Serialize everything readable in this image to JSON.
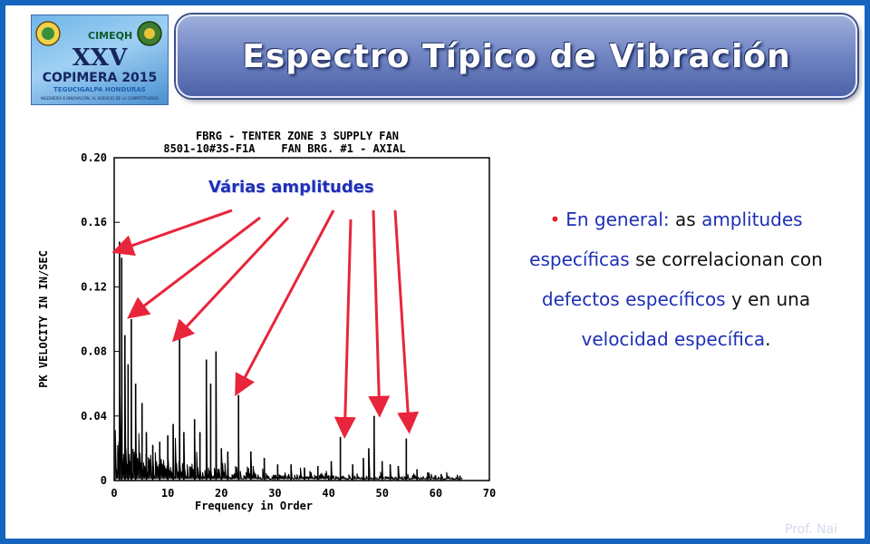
{
  "header": {
    "title": "Espectro Típico de Vibración",
    "logo": {
      "top_marks": [
        "CIMEQH"
      ],
      "edition": "XXV",
      "event": "COPIMERA 2015",
      "location": "TEGUCIGALPA HONDURAS",
      "tagline": "INGENIERÍA E INNOVACIÓN, AL SERVICIO DE LA COMPETITIVIDAD"
    }
  },
  "annotation": {
    "label": "Várias amplitudes",
    "arrow_color": "#e8253b"
  },
  "body": {
    "bullet_glyph": "•",
    "parts": [
      {
        "text": "En general:",
        "kind": "hl"
      },
      {
        "text": " as ",
        "kind": "plain"
      },
      {
        "text": "amplitudes específicas",
        "kind": "hl"
      },
      {
        "text": " se correlacionan con ",
        "kind": "plain"
      },
      {
        "text": "defectos específicos",
        "kind": "hl"
      },
      {
        "text": " y en una ",
        "kind": "plain"
      },
      {
        "text": "velocidad específica",
        "kind": "hl"
      },
      {
        "text": ".",
        "kind": "plain"
      }
    ]
  },
  "footer": {
    "watermark": "Prof. Nai"
  },
  "colors": {
    "frame": "#1565c0",
    "highlight": "#1f2fb5",
    "bullet": "#e01e2e",
    "arrow": "#e8253b"
  },
  "chart_data": {
    "type": "line",
    "title": "FBRG - TENTER ZONE 3 SUPPLY FAN",
    "subtitle": "8501-10#3S-F1A    FAN BRG. #1 - AXIAL",
    "xlabel": "Frequency in Order",
    "ylabel": "PK VELOCITY IN IN/SEC",
    "xlim": [
      0,
      70
    ],
    "ylim": [
      0,
      0.2
    ],
    "xticks": [
      0,
      10,
      20,
      30,
      40,
      50,
      60,
      70
    ],
    "yticks": [
      0,
      0.04,
      0.08,
      0.12,
      0.16,
      0.2
    ],
    "ytick_labels": [
      "0",
      "0.04",
      "0.08",
      "0.12",
      "0.16",
      "0.20"
    ],
    "grid": false,
    "peaks": [
      {
        "x": 1.0,
        "y": 0.148
      },
      {
        "x": 1.4,
        "y": 0.138
      },
      {
        "x": 2.0,
        "y": 0.09
      },
      {
        "x": 2.6,
        "y": 0.072
      },
      {
        "x": 3.2,
        "y": 0.1
      },
      {
        "x": 4.0,
        "y": 0.06
      },
      {
        "x": 5.2,
        "y": 0.048
      },
      {
        "x": 6.0,
        "y": 0.03
      },
      {
        "x": 7.2,
        "y": 0.022
      },
      {
        "x": 8.5,
        "y": 0.024
      },
      {
        "x": 10.0,
        "y": 0.028
      },
      {
        "x": 11.0,
        "y": 0.035
      },
      {
        "x": 12.2,
        "y": 0.093
      },
      {
        "x": 13.0,
        "y": 0.03
      },
      {
        "x": 15.0,
        "y": 0.038
      },
      {
        "x": 16.0,
        "y": 0.03
      },
      {
        "x": 17.2,
        "y": 0.075
      },
      {
        "x": 18.0,
        "y": 0.06
      },
      {
        "x": 19.0,
        "y": 0.08
      },
      {
        "x": 20.0,
        "y": 0.02
      },
      {
        "x": 21.2,
        "y": 0.018
      },
      {
        "x": 23.2,
        "y": 0.053
      },
      {
        "x": 25.5,
        "y": 0.018
      },
      {
        "x": 28.0,
        "y": 0.014
      },
      {
        "x": 30.5,
        "y": 0.01
      },
      {
        "x": 33.0,
        "y": 0.01
      },
      {
        "x": 35.5,
        "y": 0.008
      },
      {
        "x": 38.0,
        "y": 0.009
      },
      {
        "x": 40.5,
        "y": 0.012
      },
      {
        "x": 42.2,
        "y": 0.027
      },
      {
        "x": 44.5,
        "y": 0.01
      },
      {
        "x": 46.5,
        "y": 0.014
      },
      {
        "x": 47.5,
        "y": 0.02
      },
      {
        "x": 48.5,
        "y": 0.04
      },
      {
        "x": 50.0,
        "y": 0.012
      },
      {
        "x": 51.5,
        "y": 0.01
      },
      {
        "x": 53.0,
        "y": 0.009
      },
      {
        "x": 54.5,
        "y": 0.026
      },
      {
        "x": 56.5,
        "y": 0.007
      },
      {
        "x": 58.5,
        "y": 0.005
      },
      {
        "x": 61.0,
        "y": 0.004
      },
      {
        "x": 64.5,
        "y": 0.003
      }
    ],
    "annotation_targets": [
      {
        "x": 0.5,
        "y": 0.14
      },
      {
        "x": 3.2,
        "y": 0.1
      },
      {
        "x": 11.5,
        "y": 0.086
      },
      {
        "x": 23.0,
        "y": 0.053
      },
      {
        "x": 43.0,
        "y": 0.027
      },
      {
        "x": 49.5,
        "y": 0.04
      },
      {
        "x": 55.0,
        "y": 0.03
      }
    ]
  }
}
